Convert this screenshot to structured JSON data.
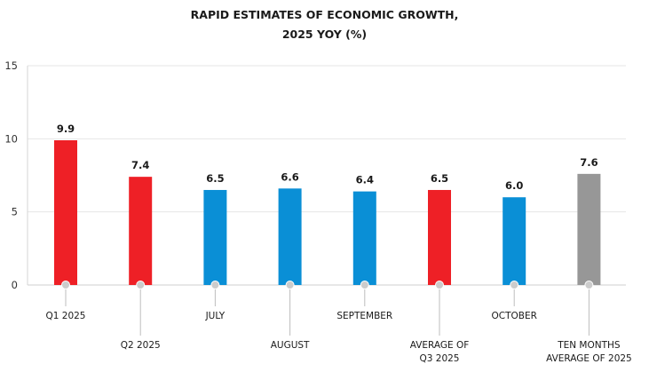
{
  "chart_data": {
    "type": "bar",
    "title": "RAPID ESTIMATES OF ECONOMIC GROWTH,",
    "subtitle": "2025 YOY (%)",
    "xlabel": "",
    "ylabel": "",
    "ylim": [
      0,
      15
    ],
    "yticks": [
      0,
      5,
      10,
      15
    ],
    "grid": true,
    "categories": [
      [
        "Q1 2025"
      ],
      [
        "Q2 2025"
      ],
      [
        "JULY"
      ],
      [
        "AUGUST"
      ],
      [
        "SEPTEMBER"
      ],
      [
        "AVERAGE OF",
        "Q3 2025"
      ],
      [
        "OCTOBER"
      ],
      [
        "TEN MONTHS",
        "AVERAGE OF 2025"
      ]
    ],
    "values": [
      9.9,
      7.4,
      6.5,
      6.6,
      6.4,
      6.5,
      6.0,
      7.6
    ],
    "data_labels": [
      "9.9",
      "7.4",
      "6.5",
      "6.6",
      "6.4",
      "6.5",
      "6.0",
      "7.6"
    ],
    "bar_colors": [
      "#ee2026",
      "#ee2026",
      "#0a8fd6",
      "#0a8fd6",
      "#0a8fd6",
      "#ee2026",
      "#0a8fd6",
      "#979797"
    ]
  }
}
